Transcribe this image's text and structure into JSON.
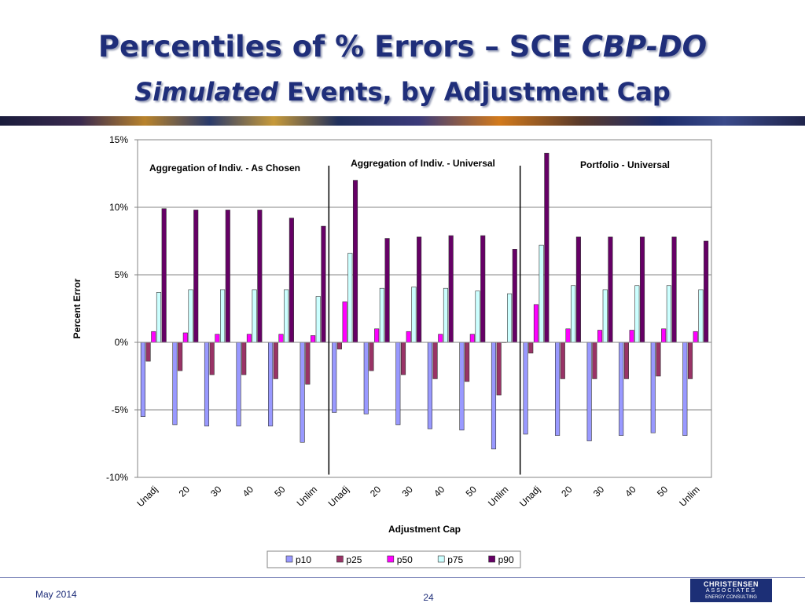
{
  "slide": {
    "title_line1": "Percentiles of % Errors – SCE ",
    "title_line1_italic": "CBP-DO",
    "title_line2_italic": "Simulated",
    "title_line2": " Events, by Adjustment Cap",
    "footer_date": "May 2014",
    "page_number": "24",
    "logo": {
      "line1": "CHRISTENSEN",
      "line2": "ASSOCIATES",
      "line3": "ENERGY CONSULTING"
    }
  },
  "chart_data": {
    "type": "bar",
    "xlabel": "Adjustment Cap",
    "ylabel": "Percent Error",
    "ylim": [
      -10,
      15
    ],
    "yticks": [
      -10,
      -5,
      0,
      5,
      10,
      15
    ],
    "ytick_labels": [
      "-10%",
      "-5%",
      "0%",
      "5%",
      "10%",
      "15%"
    ],
    "grid": true,
    "legend_placement": "bottom",
    "categories": [
      "Unadj",
      "20",
      "30",
      "40",
      "50",
      "Unlim",
      "Unadj",
      "20",
      "30",
      "40",
      "50",
      "Unlim",
      "Unadj",
      "20",
      "30",
      "40",
      "50",
      "Unlim"
    ],
    "groups": [
      {
        "label": "Aggregation of Indiv. - As Chosen",
        "categories": 6
      },
      {
        "label": "Aggregation of Indiv. - Universal",
        "categories": 6
      },
      {
        "label": "Portfolio - Universal",
        "categories": 6
      }
    ],
    "series": [
      {
        "name": "p10",
        "color": "#9999ff",
        "values": [
          -5.5,
          -6.1,
          -6.2,
          -6.2,
          -6.2,
          -7.4,
          -5.2,
          -5.3,
          -6.1,
          -6.4,
          -6.5,
          -7.9,
          -6.8,
          -6.9,
          -7.3,
          -6.9,
          -6.7,
          -6.9
        ]
      },
      {
        "name": "p25",
        "color": "#993366",
        "values": [
          -1.4,
          -2.1,
          -2.4,
          -2.4,
          -2.7,
          -3.1,
          -0.5,
          -2.1,
          -2.4,
          -2.7,
          -2.9,
          -3.9,
          -0.8,
          -2.7,
          -2.7,
          -2.7,
          -2.5,
          -2.7
        ]
      },
      {
        "name": "p50",
        "color": "#ff00ff",
        "values": [
          0.8,
          0.7,
          0.6,
          0.6,
          0.6,
          0.5,
          3.0,
          1.0,
          0.8,
          0.6,
          0.6,
          0.0,
          2.8,
          1.0,
          0.9,
          0.9,
          1.0,
          0.8
        ]
      },
      {
        "name": "p75",
        "color": "#ccffff",
        "values": [
          3.7,
          3.9,
          3.9,
          3.9,
          3.9,
          3.4,
          6.6,
          4.0,
          4.1,
          4.0,
          3.8,
          3.6,
          7.2,
          4.2,
          3.9,
          4.2,
          4.2,
          3.9
        ]
      },
      {
        "name": "p90",
        "color": "#660066",
        "values": [
          9.9,
          9.8,
          9.8,
          9.8,
          9.2,
          8.6,
          12.0,
          7.7,
          7.8,
          7.9,
          7.9,
          6.9,
          14.0,
          7.8,
          7.8,
          7.8,
          7.8,
          7.5
        ]
      }
    ]
  }
}
